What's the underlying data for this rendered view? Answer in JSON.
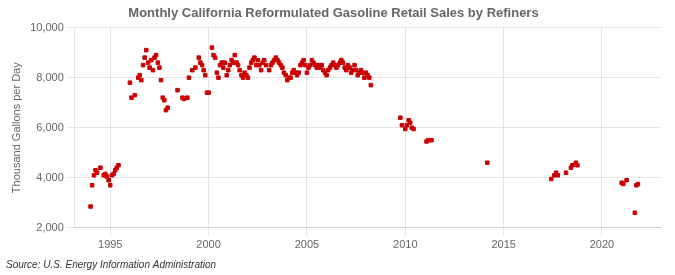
{
  "chart_data": {
    "type": "scatter",
    "title": "Monthly California Reformulated Gasoline Retail Sales by Refiners",
    "y_label": "Thousand Gallons per Day",
    "annotation": "Source: U.S. Energy Information Administration",
    "color": "#cc0000",
    "marker": "square",
    "grid": true,
    "xlim": [
      1993.2,
      2023.0
    ],
    "xticks": [
      1995,
      2000,
      2005,
      2010,
      2015,
      2020
    ],
    "ylim": [
      2000,
      10000
    ],
    "yticks": [
      {
        "value": 2000,
        "label": "2,000"
      },
      {
        "value": 4000,
        "label": "4,000"
      },
      {
        "value": 6000,
        "label": "6,000"
      },
      {
        "value": 8000,
        "label": "8,000"
      },
      {
        "value": 10000,
        "label": "10,000"
      }
    ],
    "x": [
      1994.0,
      1994.08,
      1994.17,
      1994.25,
      1994.33,
      1994.5,
      1994.67,
      1994.75,
      1994.83,
      1994.92,
      1995.0,
      1995.08,
      1995.17,
      1995.25,
      1995.33,
      1995.42,
      1996.0,
      1996.08,
      1996.25,
      1996.42,
      1996.5,
      1996.58,
      1996.67,
      1996.75,
      1996.83,
      1996.92,
      1997.0,
      1997.08,
      1997.17,
      1997.25,
      1997.33,
      1997.42,
      1997.5,
      1997.58,
      1997.67,
      1997.75,
      1997.83,
      1997.92,
      1998.42,
      1998.67,
      1998.75,
      1998.92,
      1999.0,
      1999.17,
      1999.33,
      1999.5,
      1999.58,
      1999.67,
      1999.75,
      1999.83,
      1999.92,
      2000.0,
      2000.17,
      2000.25,
      2000.33,
      2000.42,
      2000.5,
      2000.58,
      2000.67,
      2000.75,
      2000.83,
      2000.92,
      2001.0,
      2001.08,
      2001.17,
      2001.25,
      2001.33,
      2001.42,
      2001.5,
      2001.58,
      2001.67,
      2001.75,
      2001.83,
      2001.92,
      2002.0,
      2002.08,
      2002.17,
      2002.25,
      2002.33,
      2002.42,
      2002.5,
      2002.58,
      2002.67,
      2002.75,
      2002.83,
      2002.92,
      2003.08,
      2003.17,
      2003.25,
      2003.33,
      2003.42,
      2003.5,
      2003.58,
      2003.67,
      2003.75,
      2003.83,
      2003.92,
      2004.0,
      2004.08,
      2004.17,
      2004.25,
      2004.33,
      2004.42,
      2004.5,
      2004.58,
      2004.67,
      2004.75,
      2004.83,
      2004.92,
      2005.0,
      2005.08,
      2005.17,
      2005.25,
      2005.33,
      2005.42,
      2005.5,
      2005.58,
      2005.67,
      2005.75,
      2005.83,
      2005.92,
      2006.0,
      2006.08,
      2006.17,
      2006.25,
      2006.33,
      2006.42,
      2006.5,
      2006.58,
      2006.67,
      2006.75,
      2006.83,
      2006.92,
      2007.0,
      2007.08,
      2007.17,
      2007.25,
      2007.33,
      2007.42,
      2007.5,
      2007.58,
      2007.67,
      2007.75,
      2007.83,
      2007.92,
      2008.0,
      2008.08,
      2008.17,
      2008.25,
      2009.75,
      2009.83,
      2010.0,
      2010.08,
      2010.17,
      2010.25,
      2010.33,
      2010.42,
      2011.08,
      2011.17,
      2011.33,
      2014.17,
      2017.42,
      2017.58,
      2017.67,
      2017.75,
      2018.17,
      2018.42,
      2018.5,
      2018.67,
      2018.75,
      2021.0,
      2021.08,
      2021.25,
      2021.67,
      2021.75,
      2021.83
    ],
    "values": [
      2850,
      3700,
      4100,
      4300,
      4200,
      4400,
      4100,
      4150,
      4050,
      3900,
      3700,
      4100,
      4150,
      4300,
      4400,
      4500,
      7800,
      7200,
      7300,
      8000,
      8100,
      7900,
      8500,
      8800,
      9100,
      8600,
      8400,
      8700,
      8300,
      8800,
      8900,
      8600,
      8400,
      7900,
      7200,
      7100,
      6700,
      6800,
      7500,
      7200,
      7150,
      7200,
      8000,
      8300,
      8400,
      8800,
      8600,
      8500,
      8300,
      8100,
      7400,
      7400,
      9200,
      8900,
      8800,
      8200,
      8000,
      8500,
      8600,
      8400,
      8600,
      8100,
      8300,
      8500,
      8700,
      8600,
      8900,
      8600,
      8500,
      8300,
      8100,
      8000,
      8200,
      8100,
      8000,
      8400,
      8600,
      8700,
      8800,
      8500,
      8700,
      8500,
      8300,
      8600,
      8700,
      8500,
      8300,
      8500,
      8600,
      8700,
      8800,
      8700,
      8600,
      8500,
      8400,
      8200,
      8100,
      7900,
      8000,
      8000,
      8200,
      8300,
      8200,
      8100,
      8200,
      8500,
      8600,
      8700,
      8500,
      8200,
      8400,
      8500,
      8700,
      8600,
      8500,
      8400,
      8500,
      8400,
      8500,
      8300,
      8200,
      8100,
      8300,
      8400,
      8500,
      8600,
      8500,
      8400,
      8500,
      8600,
      8700,
      8600,
      8400,
      8300,
      8500,
      8400,
      8200,
      8300,
      8500,
      8300,
      8100,
      8200,
      8300,
      8200,
      8000,
      8200,
      8100,
      8000,
      7700,
      6400,
      6100,
      5950,
      6100,
      6300,
      6200,
      6000,
      5950,
      5450,
      5500,
      5500,
      4600,
      3950,
      4100,
      4200,
      4100,
      4200,
      4400,
      4500,
      4600,
      4500,
      3800,
      3750,
      3900,
      2600,
      3700,
      3750
    ]
  }
}
